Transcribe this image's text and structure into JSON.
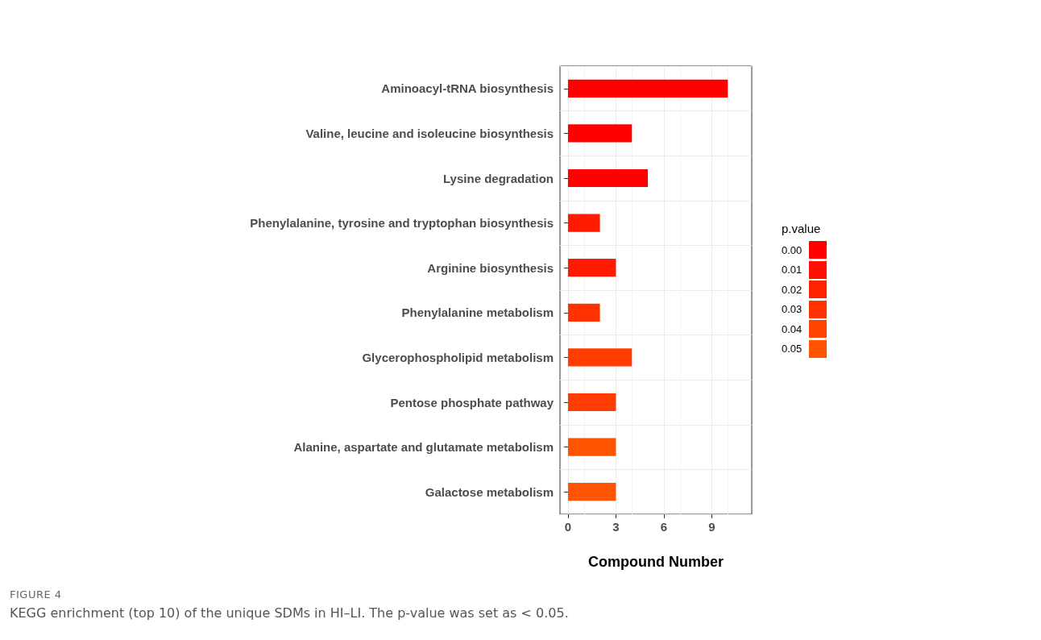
{
  "chart_data": {
    "type": "bar",
    "orientation": "horizontal",
    "xlabel": "Compound Number",
    "clabel": "p.value",
    "categories": [
      "Aminoacyl-tRNA biosynthesis",
      "Valine, leucine and isoleucine biosynthesis",
      "Lysine degradation",
      "Phenylalanine, tyrosine and tryptophan biosynthesis",
      "Arginine biosynthesis",
      "Phenylalanine metabolism",
      "Glycerophospholipid metabolism",
      "Pentose phosphate pathway",
      "Alanine, aspartate and glutamate metabolism",
      "Galactose metabolism"
    ],
    "values": [
      10,
      4,
      5,
      2,
      3,
      2,
      4,
      3,
      3,
      3
    ],
    "colors": [
      "#ff0000",
      "#ff0000",
      "#ff0000",
      "#ff1a00",
      "#ff1a00",
      "#ff3300",
      "#ff3d00",
      "#ff3d00",
      "#ff5500",
      "#ff5500"
    ],
    "xlim": [
      -0.5,
      11.5
    ],
    "xticks": [
      0,
      3,
      6,
      9
    ],
    "grid": true,
    "clim": [
      -0.005,
      0.055
    ],
    "cticks": [
      {
        "value": 0,
        "label": "0.00"
      },
      {
        "value": 0.01,
        "label": "0.01"
      },
      {
        "value": 0.02,
        "label": "0.02"
      },
      {
        "value": 0.03,
        "label": "0.03"
      },
      {
        "value": 0.04,
        "label": "0.04"
      },
      {
        "value": 0.05,
        "label": "0.05"
      }
    ],
    "annotations": [
      "FIGURE 4",
      "KEGG enrichment (top 10) of the unique SDMs in HI–LI. The p-value was set as < 0.05."
    ]
  }
}
